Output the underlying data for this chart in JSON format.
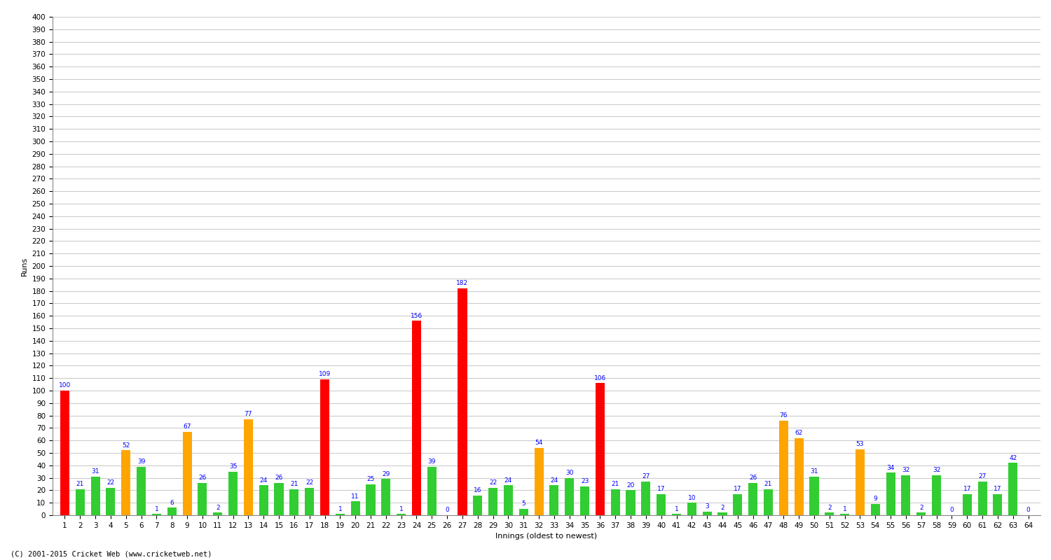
{
  "xlabel": "Innings (oldest to newest)",
  "ylabel": "Runs",
  "footer": "(C) 2001-2015 Cricket Web (www.cricketweb.net)",
  "ylim": [
    0,
    400
  ],
  "yticks": [
    0,
    10,
    20,
    30,
    40,
    50,
    60,
    70,
    80,
    90,
    100,
    110,
    120,
    130,
    140,
    150,
    160,
    170,
    180,
    190,
    200,
    210,
    220,
    230,
    240,
    250,
    260,
    270,
    280,
    290,
    300,
    310,
    320,
    330,
    340,
    350,
    360,
    370,
    380,
    390,
    400
  ],
  "innings": [
    1,
    2,
    3,
    4,
    5,
    6,
    7,
    8,
    9,
    10,
    11,
    12,
    13,
    14,
    15,
    16,
    17,
    18,
    19,
    20,
    21,
    22,
    23,
    24,
    25,
    26,
    27,
    28,
    29,
    30,
    31,
    32,
    33,
    34,
    35,
    36,
    37,
    38,
    39,
    40,
    41,
    42,
    43,
    44,
    45,
    46,
    47,
    48,
    49,
    50,
    51,
    52,
    53,
    54,
    55,
    56,
    57,
    58,
    59,
    60,
    61,
    62,
    63,
    64
  ],
  "scores": [
    100,
    21,
    31,
    22,
    52,
    39,
    1,
    6,
    67,
    26,
    2,
    35,
    77,
    24,
    26,
    21,
    22,
    109,
    1,
    11,
    25,
    29,
    1,
    156,
    39,
    0,
    182,
    16,
    22,
    24,
    5,
    54,
    24,
    30,
    23,
    106,
    21,
    20,
    27,
    17,
    1,
    10,
    3,
    2,
    17,
    26,
    21,
    76,
    62,
    31,
    2,
    1,
    53,
    9,
    34,
    32,
    2,
    32,
    0,
    17,
    27,
    17,
    42,
    0
  ],
  "colors": [
    "red",
    "limegreen",
    "limegreen",
    "limegreen",
    "orange",
    "limegreen",
    "limegreen",
    "limegreen",
    "orange",
    "limegreen",
    "limegreen",
    "limegreen",
    "orange",
    "limegreen",
    "limegreen",
    "limegreen",
    "limegreen",
    "red",
    "limegreen",
    "limegreen",
    "limegreen",
    "limegreen",
    "limegreen",
    "red",
    "limegreen",
    "limegreen",
    "red",
    "limegreen",
    "limegreen",
    "limegreen",
    "limegreen",
    "orange",
    "limegreen",
    "limegreen",
    "limegreen",
    "red",
    "limegreen",
    "limegreen",
    "limegreen",
    "limegreen",
    "limegreen",
    "limegreen",
    "limegreen",
    "limegreen",
    "limegreen",
    "limegreen",
    "limegreen",
    "orange",
    "orange",
    "limegreen",
    "limegreen",
    "limegreen",
    "orange",
    "limegreen",
    "limegreen",
    "limegreen",
    "limegreen",
    "limegreen",
    "limegreen",
    "limegreen",
    "limegreen",
    "limegreen",
    "limegreen",
    "limegreen"
  ],
  "bg_color": "#ffffff",
  "grid_color": "#cccccc",
  "bar_width": 0.6,
  "label_color": "blue",
  "label_fontsize": 6.5,
  "tick_fontsize": 7.5,
  "ylabel_fontsize": 8,
  "xlabel_fontsize": 8,
  "footer_fontsize": 7.5
}
